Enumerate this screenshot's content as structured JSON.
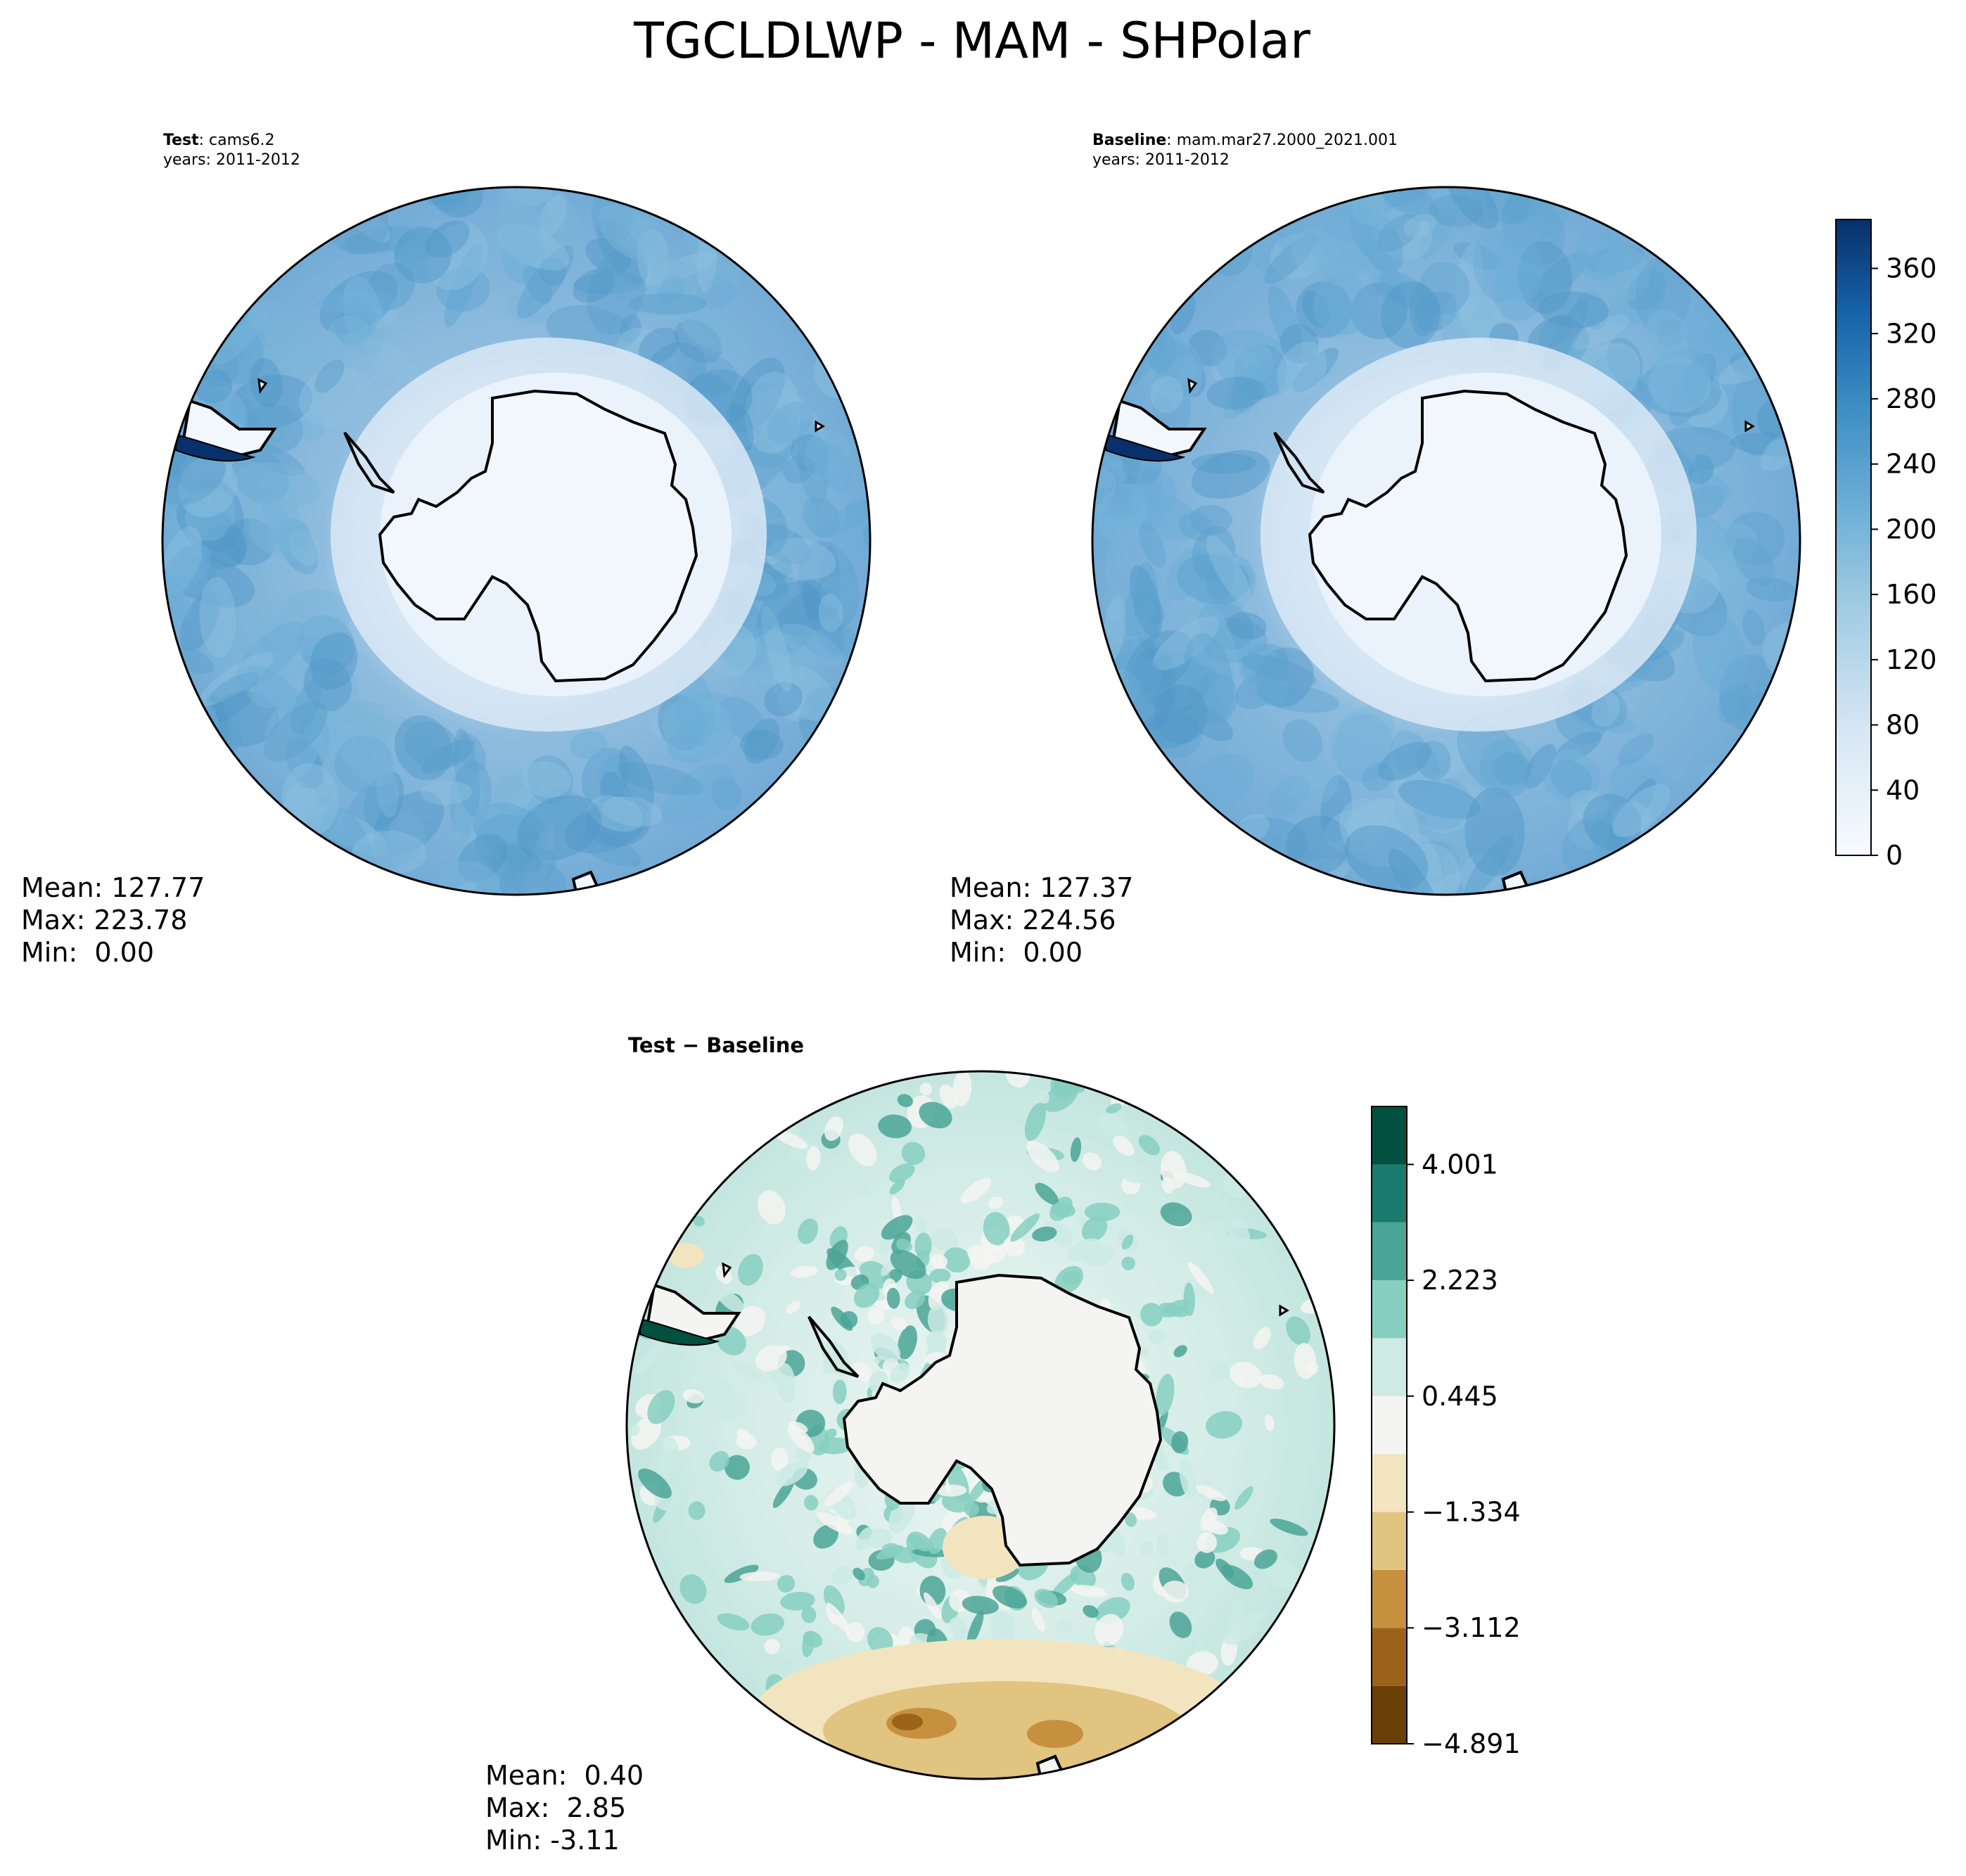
{
  "figure": {
    "title": "TGCLDLWP - MAM - SHPolar"
  },
  "panels": [
    {
      "id": "test",
      "label_bold": "Test",
      "label_rest": ": cams6.2",
      "years": "years: 2011-2012",
      "stats": [
        "Mean: 127.77",
        "Max: 223.78",
        "Min:  0.00"
      ]
    },
    {
      "id": "baseline",
      "label_bold": "Baseline",
      "label_rest": ": mam.mar27.2000_2021.001",
      "years": "years: 2011-2012",
      "stats": [
        "Mean: 127.37",
        "Max: 224.56",
        "Min:  0.00"
      ]
    },
    {
      "id": "diff",
      "label_bold": "Test − Baseline",
      "label_rest": "",
      "years": "",
      "stats": [
        "Mean:  0.40",
        "Max:  2.85",
        "Min: -3.11"
      ]
    }
  ],
  "chart_data": [
    {
      "type": "heatmap",
      "title": "Test : cams6.2",
      "projection": "south-polar-stereographic",
      "colorbar": {
        "ticks": [
          0,
          40,
          80,
          120,
          160,
          200,
          240,
          280,
          320,
          360
        ],
        "range": [
          0,
          390
        ],
        "colormap": "Blues"
      },
      "mean": 127.77,
      "max": 223.78,
      "min": 0.0
    },
    {
      "type": "heatmap",
      "title": "Baseline : mam.mar27.2000_2021.001",
      "projection": "south-polar-stereographic",
      "colorbar": {
        "ticks": [
          0,
          40,
          80,
          120,
          160,
          200,
          240,
          280,
          320,
          360
        ],
        "range": [
          0,
          390
        ],
        "colormap": "Blues"
      },
      "mean": 127.37,
      "max": 224.56,
      "min": 0.0
    },
    {
      "type": "heatmap",
      "title": "Test − Baseline",
      "projection": "south-polar-stereographic",
      "colorbar": {
        "tick_labels": [
          "4.001",
          "2.223",
          "0.445",
          "−1.334",
          "−3.112",
          "−4.891"
        ],
        "ticks": [
          4.001,
          2.223,
          0.445,
          -1.334,
          -3.112,
          -4.891
        ],
        "levels": [
          -4.891,
          -4.002,
          -3.112,
          -2.223,
          -1.334,
          -0.445,
          0.445,
          1.334,
          2.223,
          3.112,
          4.001,
          4.891
        ],
        "colors": [
          "#6b4008",
          "#9c6219",
          "#c7903f",
          "#e0c480",
          "#f3e4c0",
          "#f4f4f2",
          "#cdeae4",
          "#86cfc1",
          "#4aa597",
          "#1a7a6e",
          "#02503f"
        ],
        "colormap": "BrBG"
      },
      "mean": 0.4,
      "max": 2.85,
      "min": -3.11
    }
  ],
  "colors": {
    "blues": [
      "#f7fbff",
      "#e4eef8",
      "#cfe1f2",
      "#b5d4e9",
      "#93c3df",
      "#6aaed6",
      "#4a98c9",
      "#2e7ebc",
      "#1764ab",
      "#084a91",
      "#08306b"
    ],
    "ocean": "#7fb3d9",
    "land": "#f2f7fd"
  }
}
